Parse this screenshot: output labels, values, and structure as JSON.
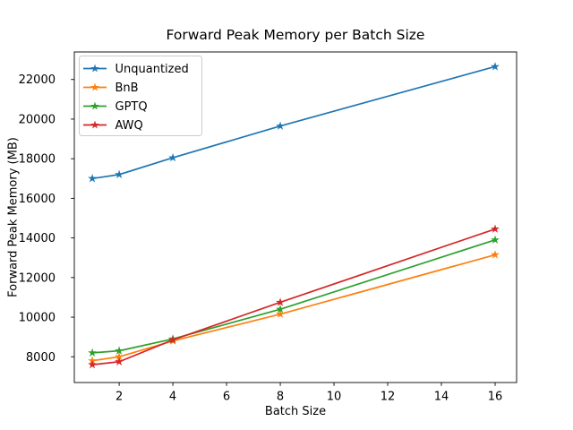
{
  "figure": {
    "background": "#ffffff"
  },
  "chart_data": {
    "type": "line",
    "title": "Forward Peak Memory per Batch Size",
    "xlabel": "Batch Size",
    "ylabel": "Forward Peak Memory (MB)",
    "x": [
      1,
      2,
      4,
      8,
      16
    ],
    "series": [
      {
        "name": "Unquantized",
        "color": "#1f77b4",
        "values": [
          17000,
          17200,
          18050,
          19650,
          22650
        ]
      },
      {
        "name": "BnB",
        "color": "#ff7f0e",
        "values": [
          7800,
          8000,
          8800,
          10150,
          13150
        ]
      },
      {
        "name": "GPTQ",
        "color": "#2ca02c",
        "values": [
          8200,
          8300,
          8900,
          10400,
          13900
        ]
      },
      {
        "name": "AWQ",
        "color": "#d62728",
        "values": [
          7600,
          7750,
          8850,
          10750,
          14450
        ]
      }
    ],
    "marker": "star",
    "xticks": [
      2,
      4,
      6,
      8,
      10,
      12,
      14,
      16
    ],
    "yticks": [
      8000,
      10000,
      12000,
      14000,
      16000,
      18000,
      20000,
      22000
    ],
    "xlim": [
      0.33,
      16.8
    ],
    "ylim": [
      6700,
      23390
    ],
    "grid": false,
    "legend": {
      "position": "upper left"
    }
  }
}
